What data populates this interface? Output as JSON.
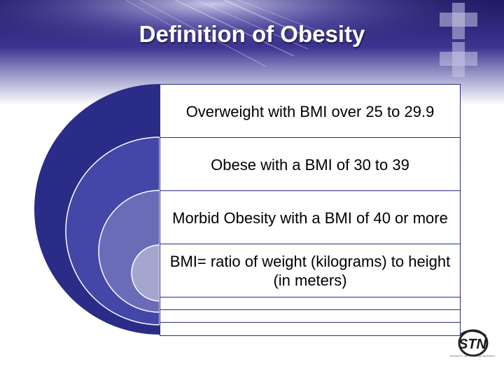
{
  "slide": {
    "title": "Definition of Obesity",
    "items": [
      "Overweight with BMI over 25 to 29.9",
      "Obese with a BMI of 30 to 39",
      "Morbid Obesity with a BMI of 40 or more",
      "BMI= ratio of weight (kilograms) to height (in meters)",
      "",
      "",
      ""
    ]
  },
  "logo": {
    "text": "STN",
    "caption": "SOCIETY OF TRAUMA NURSES"
  },
  "colors": {
    "outer_arc": "#2b2c88",
    "arc_2": "#4446a8",
    "arc_3": "#6b6cb8",
    "arc_4": "#a5a6d0",
    "box_border": "#2a2d86",
    "header_dark": "#22206b"
  }
}
